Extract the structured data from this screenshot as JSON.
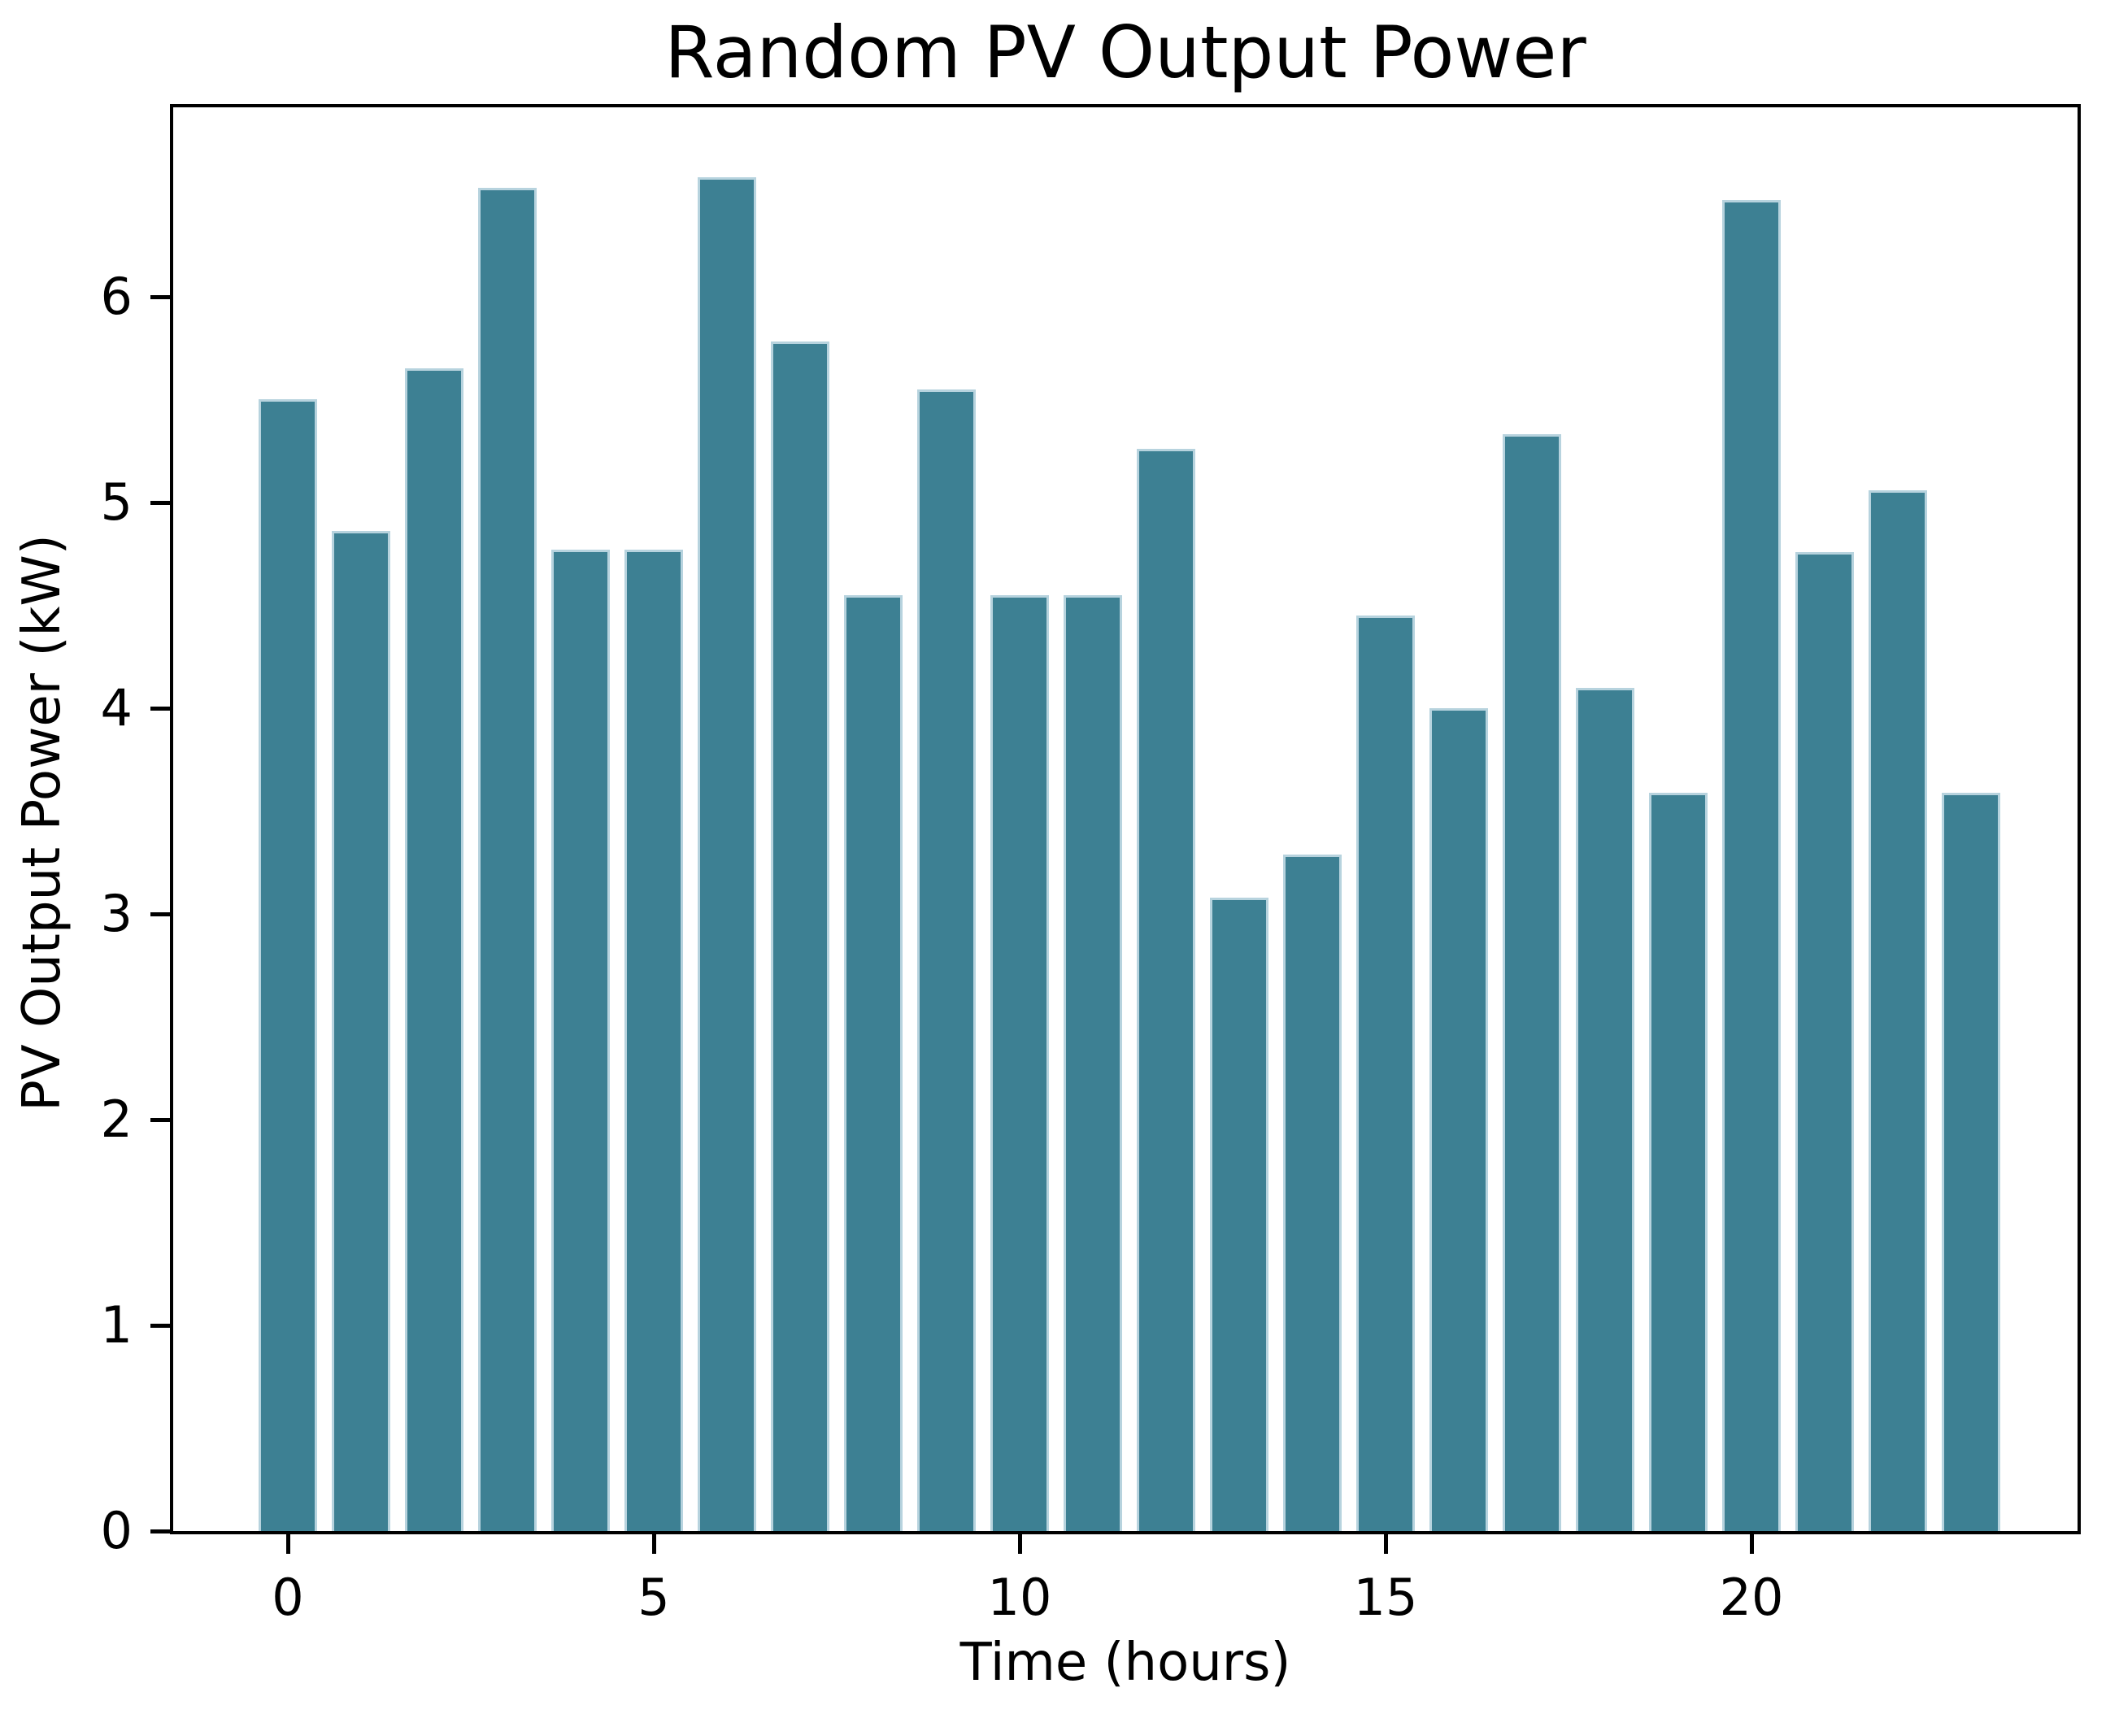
{
  "chart_data": {
    "type": "bar",
    "title": "Random PV Output Power",
    "xlabel": "Time (hours)",
    "ylabel": "PV Output Power (kW)",
    "x": [
      0,
      1,
      2,
      3,
      4,
      5,
      6,
      7,
      8,
      9,
      10,
      11,
      12,
      13,
      14,
      15,
      16,
      17,
      18,
      19,
      20,
      21,
      22,
      23
    ],
    "values": [
      5.5,
      4.86,
      5.65,
      6.53,
      4.77,
      4.77,
      6.58,
      5.78,
      4.55,
      5.55,
      4.55,
      4.55,
      5.26,
      3.08,
      3.29,
      4.45,
      4.0,
      5.33,
      4.1,
      3.59,
      6.47,
      4.76,
      5.06,
      3.59
    ],
    "xticks": [
      0,
      5,
      10,
      15,
      20
    ],
    "xtick_labels": [
      "0",
      "5",
      "10",
      "15",
      "20"
    ],
    "yticks": [
      0,
      1,
      2,
      3,
      4,
      5,
      6
    ],
    "ytick_labels": [
      "0",
      "1",
      "2",
      "3",
      "4",
      "5",
      "6"
    ],
    "ylim": [
      0,
      6.92
    ],
    "grid": false,
    "legend": null,
    "bar_color": "#3d8093",
    "bar_edge_color": "#b7d3de",
    "axis_color": "#000000",
    "background_color": "#ffffff"
  }
}
